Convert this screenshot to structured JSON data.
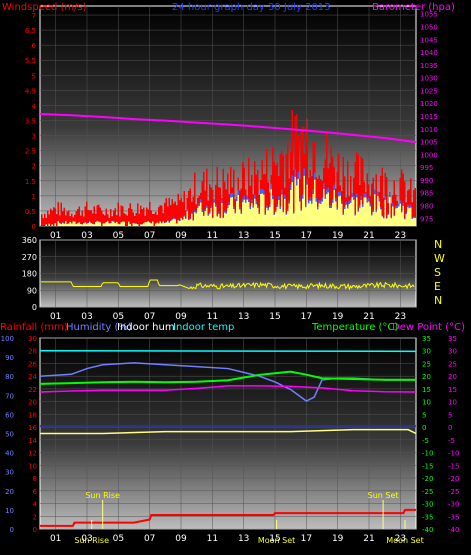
{
  "colors": {
    "wind_gust": "#ff0000",
    "wind_avg": "#ffff80",
    "wind_mid": "#4060ff",
    "barometer": "#ff00ff",
    "direction": "#ffff00",
    "rain": "#ff0000",
    "humidity": "#7080ff",
    "indoor_hum": "#ffff80",
    "indoor_temp": "#00ffff",
    "temperature": "#00ff00",
    "dew_point": "#ff00ff",
    "dark_blue": "#2030c0",
    "axis_left": "#7080ff",
    "axis_right": "#00ff00"
  },
  "chart_data": [
    {
      "type": "bar",
      "title": "24 hour graph day  30 July 2013",
      "y_left_label": "Windspeed (m/s)",
      "y_right_label": "Barometer (hpa)",
      "x_ticks": [
        "01",
        "03",
        "05",
        "07",
        "09",
        "11",
        "13",
        "15",
        "17",
        "19",
        "21",
        "23"
      ],
      "xlim": [
        0,
        24
      ],
      "y_left_ticks": [
        "0",
        "0.5",
        "1",
        "1.5",
        "2",
        "2.5",
        "3",
        "3.5",
        "4",
        "4.5",
        "5",
        "5.5",
        "6",
        "6.5",
        "7"
      ],
      "ylim_left": [
        0,
        7.3
      ],
      "y_right_ticks": [
        "975",
        "980",
        "985",
        "990",
        "995",
        "1000",
        "1005",
        "1010",
        "1015",
        "1020",
        "1025",
        "1030",
        "1035",
        "1040",
        "1045",
        "1050",
        "1055"
      ],
      "ylim_right": [
        972,
        1058
      ],
      "series": [
        {
          "name": "Barometer",
          "x": [
            0,
            2,
            4,
            6,
            8,
            10,
            12,
            14,
            16,
            18,
            20,
            22,
            24
          ],
          "y": [
            1015.8,
            1015.3,
            1014.6,
            1013.8,
            1013.2,
            1012.4,
            1011.7,
            1010.8,
            1009.8,
            1008.8,
            1007.6,
            1006.4,
            1004.8
          ]
        },
        {
          "name": "Wind gust",
          "x": [
            0,
            1,
            2,
            3,
            4,
            5,
            6,
            7,
            8,
            9,
            10,
            11,
            12,
            13,
            14,
            15,
            16,
            17,
            18,
            19,
            20,
            21,
            22,
            23,
            24
          ],
          "y": [
            0.4,
            0.6,
            0.5,
            0.6,
            0.5,
            0.6,
            0.6,
            0.7,
            0.7,
            0.8,
            1.4,
            1.5,
            1.5,
            1.6,
            1.8,
            2.2,
            2.8,
            3.2,
            2.5,
            2.0,
            1.8,
            1.7,
            1.5,
            1.4,
            1.0
          ]
        },
        {
          "name": "Wind average",
          "x": [
            0,
            1,
            2,
            3,
            4,
            5,
            6,
            7,
            8,
            9,
            10,
            11,
            12,
            13,
            14,
            15,
            16,
            17,
            18,
            19,
            20,
            21,
            22,
            23,
            24
          ],
          "y": [
            0.0,
            0.1,
            0.1,
            0.1,
            0.1,
            0.1,
            0.1,
            0.1,
            0.1,
            0.2,
            0.5,
            0.6,
            0.6,
            0.7,
            0.7,
            0.8,
            1.0,
            1.1,
            0.9,
            0.8,
            0.7,
            0.7,
            0.6,
            0.6,
            0.3
          ]
        }
      ]
    },
    {
      "type": "line",
      "y_ticks": [
        "0",
        "90",
        "180",
        "270",
        "360"
      ],
      "ylim": [
        0,
        360
      ],
      "direction_labels": [
        "N",
        "W",
        "S",
        "E",
        "N"
      ],
      "series": [
        {
          "name": "Wind direction",
          "x": [
            0,
            2,
            2.1,
            3.9,
            4.0,
            5.0,
            5.1,
            6.9,
            7.0,
            7.5,
            7.6,
            8.8,
            8.9,
            9.5,
            10,
            12,
            14,
            16,
            18,
            20,
            22,
            24
          ],
          "y": [
            135,
            135,
            110,
            110,
            130,
            130,
            110,
            110,
            145,
            145,
            115,
            115,
            120,
            100,
            115,
            110,
            120,
            110,
            115,
            110,
            118,
            112
          ]
        }
      ]
    },
    {
      "type": "line",
      "labels": {
        "rain": "Rainfall (mm)",
        "humidity": "Humidity (%)",
        "indoor_hum": "Indoor hum",
        "indoor_temp": "Indoor temp",
        "temperature": "Temperature (°C)",
        "dew_point": "Dew Point (°C)"
      },
      "y_rain_ticks": [
        "0",
        "2",
        "4",
        "6",
        "8",
        "10",
        "12",
        "14",
        "16",
        "18",
        "20",
        "22",
        "24",
        "26",
        "28",
        "30"
      ],
      "ylim_rain": [
        0,
        30
      ],
      "y_hum_ticks": [
        "0",
        "10",
        "20",
        "30",
        "40",
        "50",
        "60",
        "70",
        "80",
        "90",
        "100"
      ],
      "ylim_hum": [
        0,
        100
      ],
      "y_temp_ticks": [
        "-40",
        "-35",
        "-30",
        "-25",
        "-20",
        "-15",
        "-10",
        "-5",
        "0",
        "5",
        "10",
        "15",
        "20",
        "25",
        "30",
        "35"
      ],
      "ylim_temp": [
        -40,
        35
      ],
      "events": [
        {
          "label": "Sun Rise",
          "x": 4.0,
          "row": "top"
        },
        {
          "label": "Sun Rise",
          "x": 3.3,
          "row": "bottom"
        },
        {
          "label": "Sun Set",
          "x": 21.9,
          "row": "top"
        },
        {
          "label": "Moon Set",
          "x": 15.1,
          "row": "bottom"
        },
        {
          "label": "Moon Set",
          "x": 23.3,
          "row": "bottom"
        }
      ],
      "series": [
        {
          "name": "Indoor temp",
          "axis": "rain",
          "x": [
            0,
            24
          ],
          "y": [
            28.0,
            27.9
          ]
        },
        {
          "name": "Humidity",
          "axis": "hum",
          "x": [
            0,
            2,
            3,
            4,
            6,
            8,
            10,
            12,
            13,
            14,
            15,
            16,
            17,
            17.5,
            18,
            19,
            20,
            22,
            24
          ],
          "y": [
            80,
            81,
            84,
            86,
            87,
            86,
            85,
            84,
            82,
            80,
            77,
            73,
            67,
            69,
            78,
            79,
            79,
            78,
            78
          ]
        },
        {
          "name": "Indoor hum",
          "axis": "hum",
          "x": [
            0,
            4,
            8,
            12,
            16,
            20,
            23.5,
            24
          ],
          "y": [
            50,
            50,
            51,
            51,
            51,
            52,
            52,
            50
          ]
        },
        {
          "name": "Dark blue",
          "axis": "hum",
          "x": [
            0,
            24
          ],
          "y": [
            54,
            54
          ]
        },
        {
          "name": "Rainfall",
          "axis": "rain",
          "x": [
            0,
            2.1,
            2.2,
            6,
            7,
            7.1,
            14.9,
            15,
            19,
            23.2,
            23.3,
            24
          ],
          "y": [
            0.5,
            0.5,
            1.0,
            1.0,
            1.5,
            2.2,
            2.2,
            2.5,
            2.5,
            2.5,
            3.0,
            3.0
          ]
        },
        {
          "name": "Temperature",
          "axis": "temp",
          "x": [
            0,
            2,
            4,
            6,
            8,
            10,
            12,
            14,
            16,
            17,
            18,
            20,
            22,
            24
          ],
          "y": [
            17,
            17.3,
            17.6,
            17.8,
            17.6,
            17.8,
            18.4,
            20.5,
            21.8,
            20.6,
            19.2,
            18.9,
            18.6,
            18.6
          ]
        },
        {
          "name": "Dew Point",
          "axis": "temp",
          "x": [
            0,
            2,
            4,
            6,
            8,
            10,
            12,
            13,
            14,
            16,
            18,
            20,
            22,
            24
          ],
          "y": [
            13.8,
            14.2,
            14.5,
            14.5,
            14.5,
            15.2,
            16.2,
            16.2,
            16.2,
            16.0,
            15.4,
            14.3,
            13.9,
            13.8
          ]
        }
      ]
    }
  ]
}
